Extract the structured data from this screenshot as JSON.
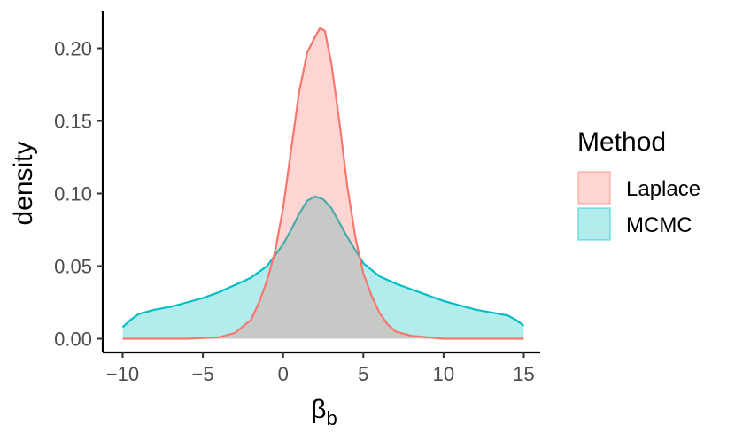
{
  "chart_data": {
    "type": "area",
    "title": "",
    "xlabel_base": "β",
    "xlabel_sub": "b",
    "ylabel": "density",
    "xlim": [
      -10,
      15
    ],
    "ylim": [
      0,
      0.22
    ],
    "x_ticks": [
      -10,
      -5,
      0,
      5,
      10,
      15
    ],
    "x_tick_labels": [
      "−10",
      "−5",
      "0",
      "5",
      "10",
      "15"
    ],
    "y_ticks": [
      0.0,
      0.05,
      0.1,
      0.15,
      0.2
    ],
    "y_tick_labels": [
      "0.00",
      "0.05",
      "0.10",
      "0.15",
      "0.20"
    ],
    "grid": false,
    "legend": {
      "title": "Method",
      "position": "right"
    },
    "series": [
      {
        "name": "Laplace",
        "line_color": "#F8766D",
        "fill_color": "#F8766D",
        "fill_opacity": 0.3,
        "x": [
          -10,
          -6,
          -4,
          -3,
          -2,
          -1.5,
          -1,
          -0.5,
          0,
          0.5,
          1,
          1.5,
          2,
          2.3,
          2.6,
          3,
          3.5,
          4,
          4.5,
          5,
          5.5,
          6,
          6.5,
          7,
          8,
          9,
          10,
          12,
          15
        ],
        "y": [
          0,
          0,
          0.001,
          0.004,
          0.013,
          0.025,
          0.04,
          0.06,
          0.09,
          0.13,
          0.17,
          0.197,
          0.208,
          0.214,
          0.212,
          0.19,
          0.15,
          0.105,
          0.07,
          0.045,
          0.03,
          0.018,
          0.01,
          0.005,
          0.002,
          0.001,
          0,
          0,
          0
        ]
      },
      {
        "name": "MCMC",
        "line_color": "#00BFC4",
        "fill_color": "#00BFC4",
        "fill_opacity": 0.3,
        "x": [
          -10,
          -9.5,
          -9,
          -8,
          -7,
          -6,
          -5,
          -4,
          -3,
          -2,
          -1,
          0,
          0.5,
          1,
          1.5,
          2,
          2.5,
          3,
          3.5,
          4,
          5,
          6,
          7,
          8,
          9,
          10,
          11,
          12,
          13,
          14,
          14.5,
          15
        ],
        "y": [
          0.008,
          0.013,
          0.017,
          0.02,
          0.022,
          0.025,
          0.028,
          0.032,
          0.037,
          0.042,
          0.05,
          0.065,
          0.075,
          0.086,
          0.095,
          0.098,
          0.096,
          0.09,
          0.08,
          0.07,
          0.052,
          0.043,
          0.038,
          0.034,
          0.03,
          0.026,
          0.023,
          0.02,
          0.018,
          0.016,
          0.013,
          0.009
        ]
      }
    ]
  }
}
